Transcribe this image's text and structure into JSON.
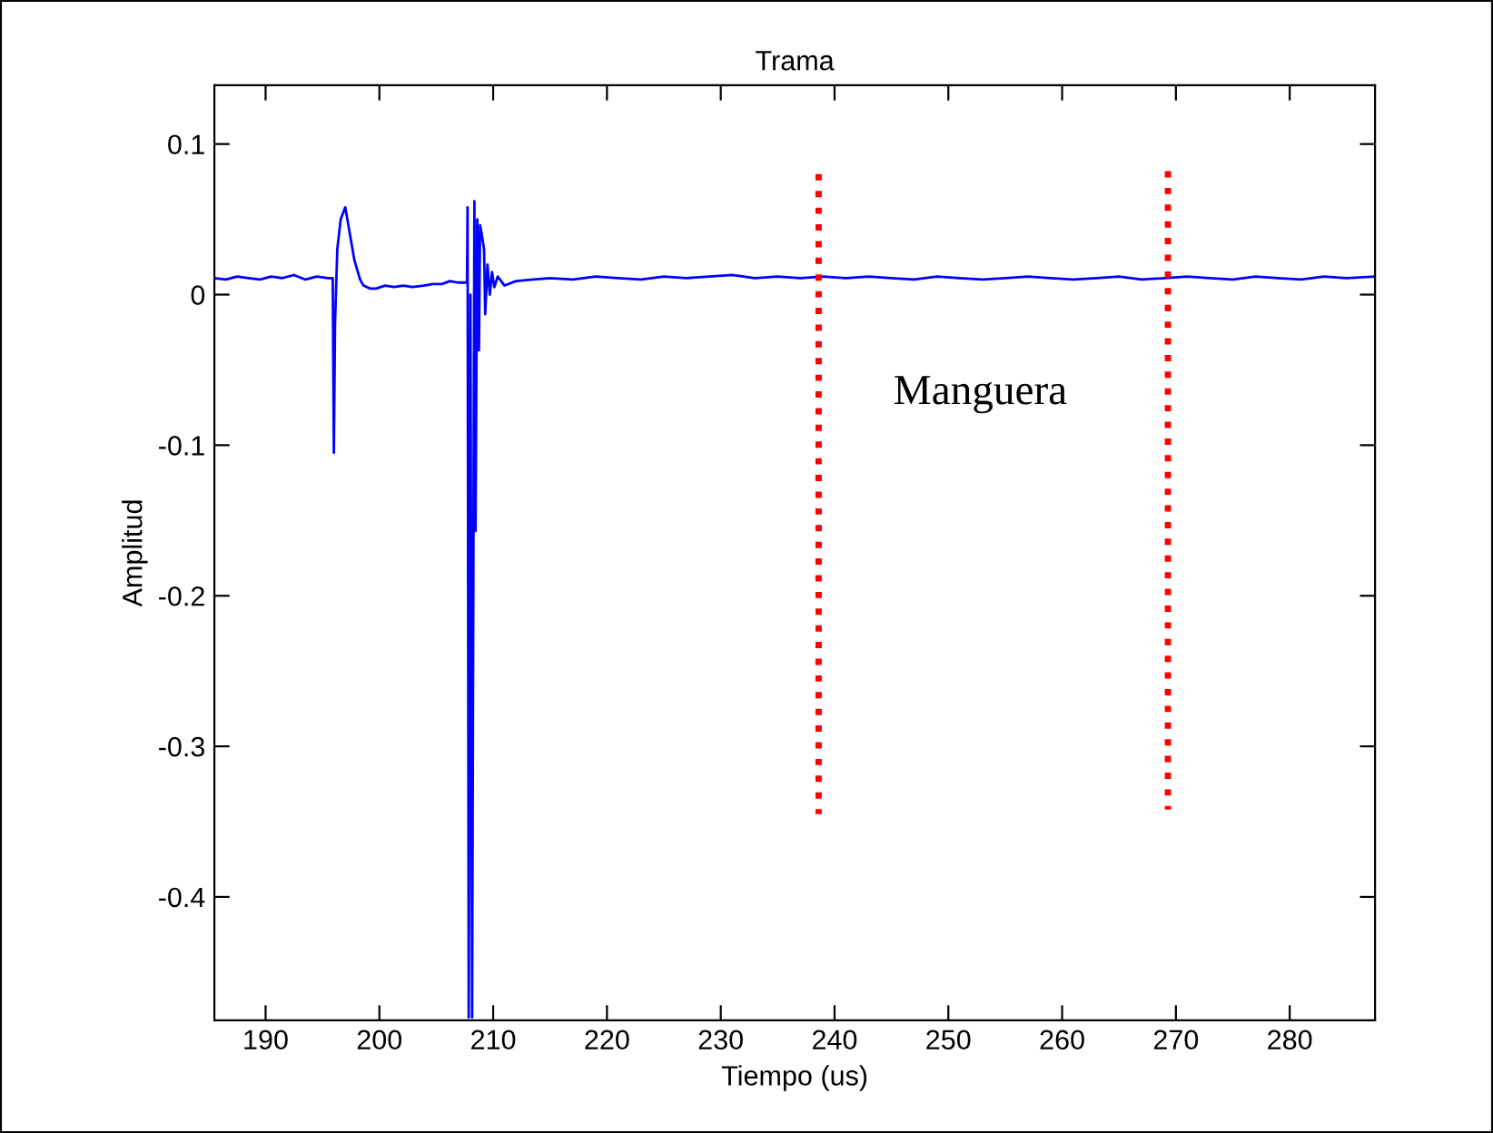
{
  "chart_data": {
    "type": "line",
    "title": "Trama",
    "xlabel": "Tiempo (us)",
    "ylabel": "Amplitud",
    "xlim": [
      185.5,
      287.5
    ],
    "ylim": [
      -0.482,
      0.139
    ],
    "xticks": [
      190,
      200,
      210,
      220,
      230,
      240,
      250,
      260,
      270,
      280
    ],
    "yticks": [
      -0.4,
      -0.3,
      -0.2,
      -0.1,
      0,
      0.1
    ],
    "grid": false,
    "legend": false,
    "annotations": [
      "Manguera"
    ],
    "series": [
      {
        "color": "#0000ff",
        "line_style": "solid",
        "x": [
          185.5,
          186.5,
          187.5,
          188.5,
          189.5,
          190.5,
          191.5,
          192.5,
          193.5,
          194.5,
          195.5,
          195.9,
          196.0,
          196.1,
          196.3,
          196.6,
          197.0,
          197.3,
          197.8,
          198.3,
          198.6,
          199.2,
          199.7,
          200.5,
          201.3,
          202.1,
          202.9,
          203.9,
          204.7,
          205.5,
          206.2,
          206.9,
          207.4,
          207.7,
          207.75,
          207.85,
          208.0,
          208.15,
          208.35,
          208.45,
          208.6,
          208.75,
          208.85,
          209.0,
          209.2,
          209.3,
          209.5,
          209.7,
          209.9,
          210.1,
          210.4,
          211.0,
          212.0,
          213.5,
          215.0,
          217.0,
          219.0,
          221.0,
          223.0,
          225.0,
          227.0,
          229.0,
          231.0,
          233.0,
          235.0,
          237.0,
          239.0,
          241.0,
          243.0,
          245.0,
          247.0,
          249.0,
          251.0,
          253.0,
          255.0,
          257.0,
          259.0,
          261.0,
          263.0,
          265.0,
          267.0,
          269.0,
          271.0,
          273.0,
          275.0,
          277.0,
          279.0,
          281.0,
          283.0,
          285.0,
          287.5
        ],
        "values": [
          0.011,
          0.01,
          0.012,
          0.011,
          0.01,
          0.012,
          0.011,
          0.013,
          0.01,
          0.012,
          0.011,
          0.011,
          -0.105,
          -0.02,
          0.03,
          0.05,
          0.058,
          0.045,
          0.023,
          0.01,
          0.006,
          0.004,
          0.004,
          0.006,
          0.005,
          0.006,
          0.005,
          0.006,
          0.007,
          0.007,
          0.009,
          0.008,
          0.008,
          0.008,
          0.058,
          -0.48,
          0.0,
          -0.48,
          0.062,
          -0.157,
          0.05,
          -0.037,
          0.046,
          0.04,
          0.03,
          -0.013,
          0.02,
          0.0,
          0.015,
          0.005,
          0.012,
          0.006,
          0.009,
          0.01,
          0.011,
          0.01,
          0.012,
          0.011,
          0.01,
          0.012,
          0.011,
          0.012,
          0.013,
          0.011,
          0.012,
          0.011,
          0.012,
          0.011,
          0.012,
          0.011,
          0.01,
          0.012,
          0.011,
          0.01,
          0.011,
          0.012,
          0.011,
          0.01,
          0.011,
          0.012,
          0.01,
          0.011,
          0.012,
          0.011,
          0.01,
          0.012,
          0.011,
          0.01,
          0.012,
          0.011,
          0.012
        ]
      },
      {
        "color": "#ff0000",
        "line_style": "dotted",
        "x": [
          238.6,
          238.6
        ],
        "values": [
          0.08,
          -0.345
        ]
      },
      {
        "color": "#ff0000",
        "line_style": "dotted",
        "x": [
          269.3,
          269.3
        ],
        "values": [
          0.082,
          -0.342
        ]
      }
    ]
  }
}
